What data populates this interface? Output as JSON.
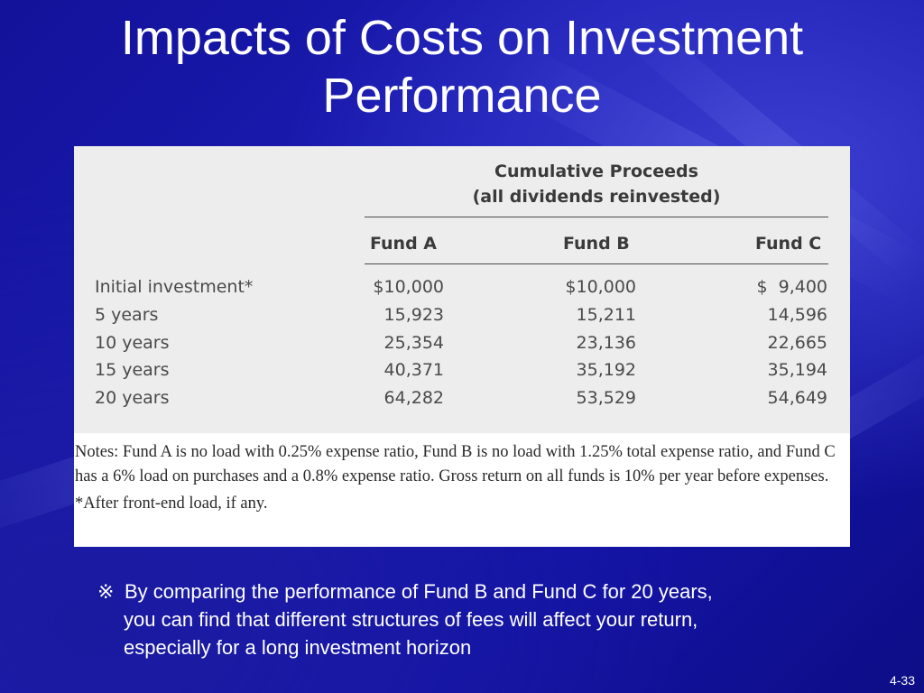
{
  "slide": {
    "title_line1": "Impacts of Costs on Investment",
    "title_line2": "Performance",
    "page_number": "4-33"
  },
  "table": {
    "header_line1": "Cumulative Proceeds",
    "header_line2": "(all dividends reinvested)",
    "columns": [
      "Fund A",
      "Fund B",
      "Fund C"
    ],
    "rows": [
      {
        "label": "Initial investment*",
        "values": [
          "$10,000",
          "$10,000",
          "$  9,400"
        ]
      },
      {
        "label": "5 years",
        "values": [
          "15,923",
          "15,211",
          "14,596"
        ]
      },
      {
        "label": "10 years",
        "values": [
          "25,354",
          "23,136",
          "22,665"
        ]
      },
      {
        "label": "15 years",
        "values": [
          "40,371",
          "35,192",
          "35,194"
        ]
      },
      {
        "label": "20 years",
        "values": [
          "64,282",
          "53,529",
          "54,649"
        ]
      }
    ],
    "notes": "Notes: Fund A is no load with 0.25% expense ratio, Fund B is no load with 1.25% total expense ratio, and Fund C has a 6% load on purchases and a 0.8% expense ratio. Gross return on all funds is 10% per year before expenses.",
    "footnote": "*After front-end load, if any."
  },
  "bottom_note": {
    "mark": "※",
    "line1": "By comparing the performance of Fund B and Fund C for 20 years,",
    "line2": "you can find that different structures of fees will affect your return,",
    "line3": "especially for a long investment horizon"
  },
  "colors": {
    "background": "#1414a6",
    "table_background": "#ededee",
    "text_light": "#ffffff"
  }
}
